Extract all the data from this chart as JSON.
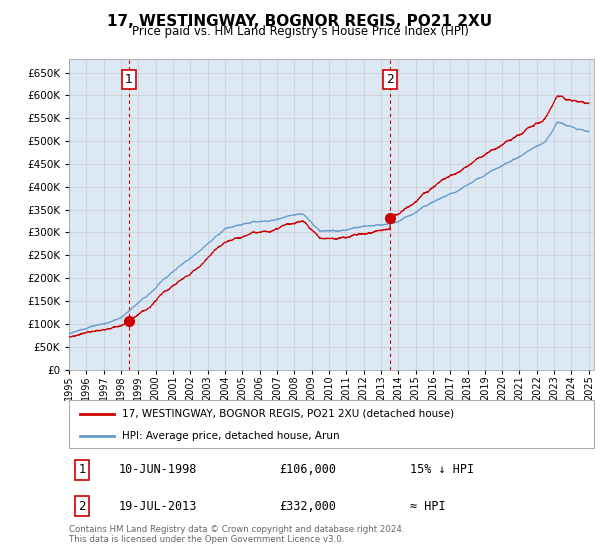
{
  "title": "17, WESTINGWAY, BOGNOR REGIS, PO21 2XU",
  "subtitle": "Price paid vs. HM Land Registry's House Price Index (HPI)",
  "sale1_date": "10-JUN-1998",
  "sale1_price": 106000,
  "sale1_label": "15% ↓ HPI",
  "sale2_date": "19-JUL-2013",
  "sale2_price": 332000,
  "sale2_label": "≈ HPI",
  "legend1": "17, WESTINGWAY, BOGNOR REGIS, PO21 2XU (detached house)",
  "legend2": "HPI: Average price, detached house, Arun",
  "footer1": "Contains HM Land Registry data © Crown copyright and database right 2024.",
  "footer2": "This data is licensed under the Open Government Licence v3.0.",
  "hpi_color": "#6699cc",
  "price_color": "#cc0000",
  "bg_color": "#dce9f5",
  "grid_color": "#cccccc",
  "ylim": [
    0,
    680000
  ],
  "yticks": [
    0,
    50000,
    100000,
    150000,
    200000,
    250000,
    300000,
    350000,
    400000,
    450000,
    500000,
    550000,
    600000,
    650000
  ],
  "sale1_year": 1998.44,
  "sale2_year": 2013.54
}
